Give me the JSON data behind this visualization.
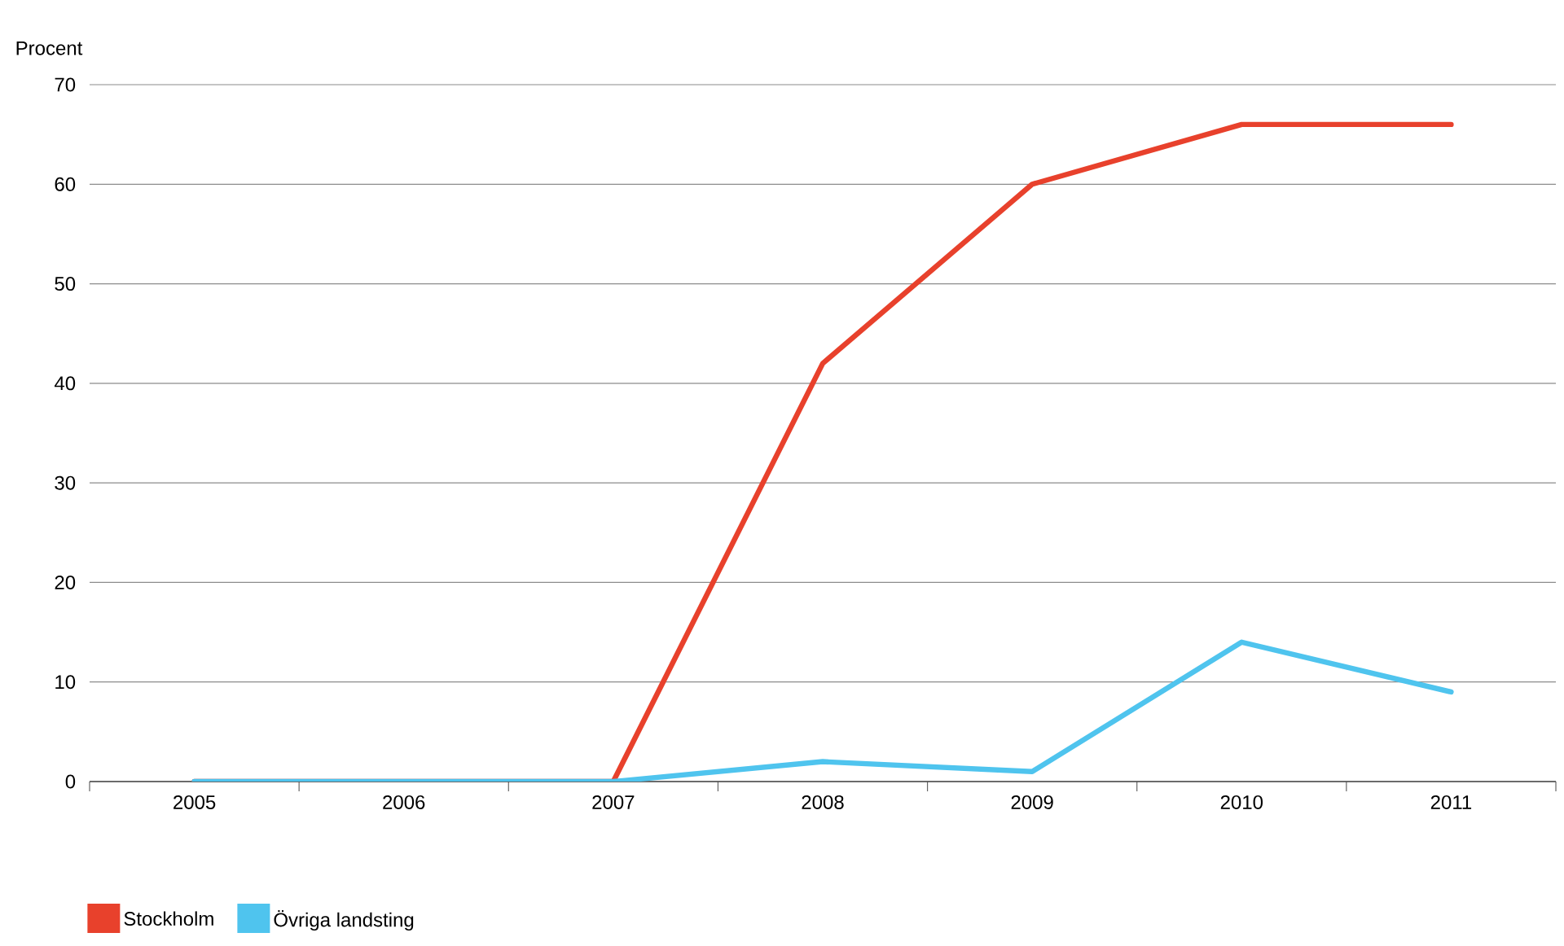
{
  "chart_data": {
    "type": "line",
    "ylabel": "Procent",
    "categories": [
      "2005",
      "2006",
      "2007",
      "2008",
      "2009",
      "2010",
      "2011"
    ],
    "series": [
      {
        "name": "Stockholm",
        "color": "#e8412c",
        "values": [
          0,
          0,
          0,
          42,
          60,
          66,
          66
        ]
      },
      {
        "name": "Övriga landsting",
        "color": "#4fc4ee",
        "values": [
          0,
          0,
          0,
          2,
          1,
          14,
          9
        ]
      }
    ],
    "ylim": [
      0,
      70
    ],
    "yticks": [
      0,
      10,
      20,
      30,
      40,
      50,
      60,
      70
    ],
    "grid": "y",
    "legend": "bottom left",
    "marker": "none",
    "line_style": "solid"
  }
}
